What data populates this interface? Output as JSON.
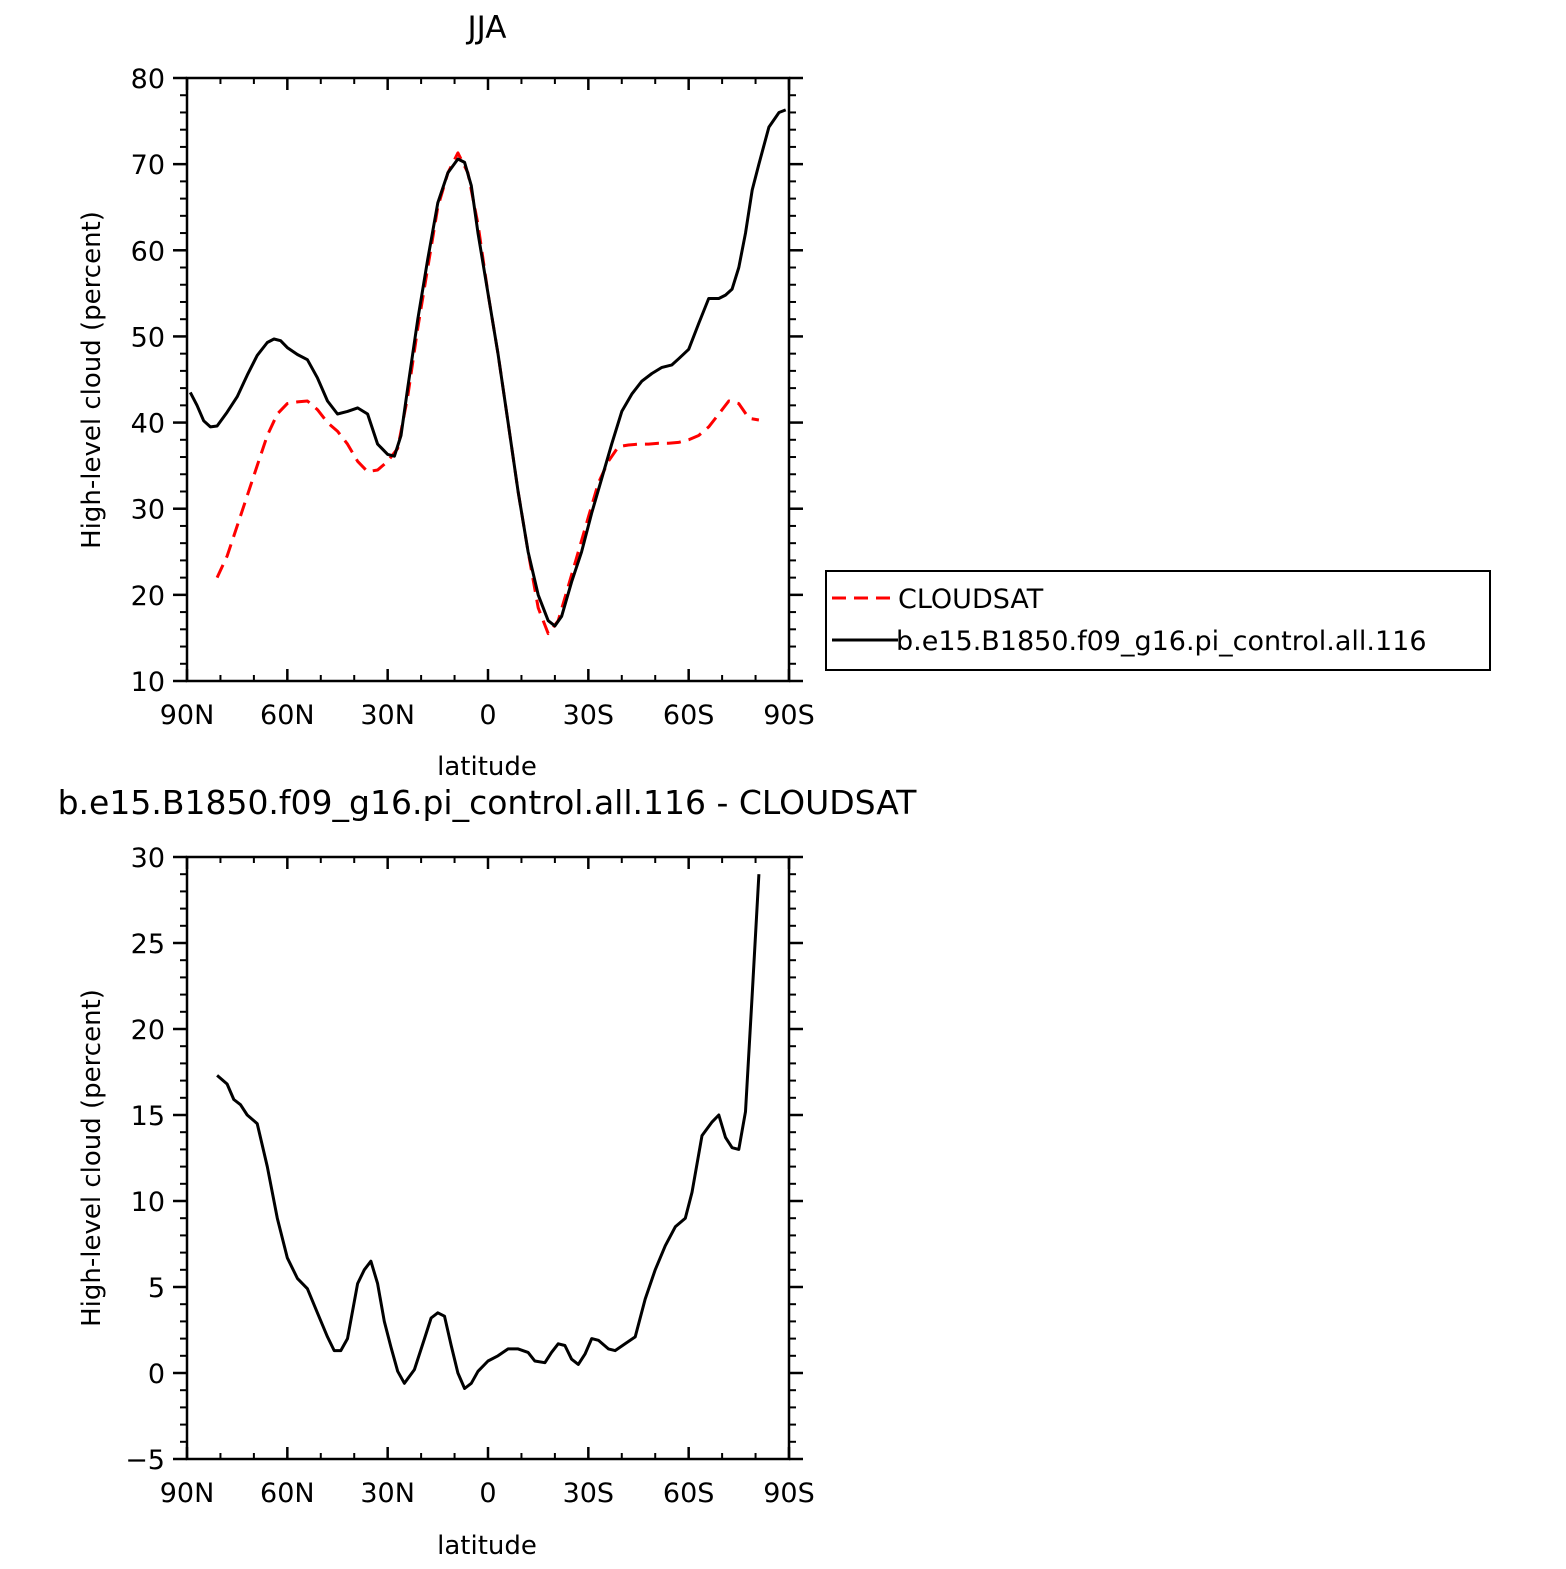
{
  "colors": {
    "cloudsat": "#ff0000",
    "model": "#000000",
    "axis": "#000000",
    "background": "#ffffff"
  },
  "chart_data": [
    {
      "type": "line",
      "title": "JJA",
      "xlabel": "latitude",
      "ylabel": "High-level cloud (percent)",
      "xlim": [
        90,
        -90
      ],
      "ylim": [
        10,
        80
      ],
      "x_ticks": [
        {
          "value": 90,
          "label": "90N"
        },
        {
          "value": 60,
          "label": "60N"
        },
        {
          "value": 30,
          "label": "30N"
        },
        {
          "value": 0,
          "label": "0"
        },
        {
          "value": -30,
          "label": "30S"
        },
        {
          "value": -60,
          "label": "60S"
        },
        {
          "value": -90,
          "label": "90S"
        }
      ],
      "y_ticks": [
        10,
        20,
        30,
        40,
        50,
        60,
        70,
        80
      ],
      "legend": {
        "placement": "right",
        "entries": [
          {
            "label": "CLOUDSAT",
            "style": "dashed",
            "color": "#ff0000"
          },
          {
            "label": "b.e15.B1850.f09_g16.pi_control.all.116",
            "style": "solid",
            "color": "#000000"
          }
        ]
      },
      "series": [
        {
          "name": "CLOUDSAT",
          "style": "dashed",
          "color": "#ff0000",
          "x": [
            81,
            78,
            75,
            72,
            69,
            66,
            63,
            60,
            57,
            54,
            51,
            48,
            45,
            42,
            39,
            36,
            33,
            30,
            27,
            24,
            21,
            18,
            15,
            12,
            9,
            6,
            3,
            0,
            -3,
            -6,
            -9,
            -12,
            -15,
            -18,
            -21,
            -24,
            -27,
            -30,
            -33,
            -36,
            -39,
            -42,
            -45,
            -48,
            -51,
            -54,
            -57,
            -60,
            -63,
            -66,
            -69,
            -72,
            -75,
            -78,
            -81
          ],
          "y": [
            22,
            24.5,
            28,
            31.5,
            35,
            38.5,
            41,
            42.2,
            42.4,
            42.5,
            41.5,
            40,
            39,
            37.5,
            35.5,
            34.3,
            34.5,
            35.5,
            37,
            43,
            51,
            58,
            65,
            69,
            71.3,
            69,
            63,
            55,
            48,
            40,
            32,
            25,
            18.5,
            15.5,
            17,
            21,
            25,
            29,
            33,
            35.5,
            37.2,
            37.4,
            37.5,
            37.5,
            37.6,
            37.6,
            37.7,
            38,
            38.5,
            39.5,
            41,
            42.5,
            42.2,
            40.5,
            40.3
          ]
        },
        {
          "name": "b.e15.B1850.f09_g16.pi_control.all.116",
          "style": "solid",
          "color": "#000000",
          "x": [
            89,
            87,
            85,
            83,
            81,
            78,
            75,
            72,
            69,
            66,
            64,
            62,
            60,
            57,
            54,
            51,
            48,
            45,
            42,
            39,
            36,
            33,
            30,
            28,
            26,
            24,
            21,
            18,
            15,
            12,
            9,
            7,
            5,
            3,
            0,
            -3,
            -6,
            -9,
            -12,
            -15,
            -18,
            -20,
            -22,
            -25,
            -28,
            -31,
            -34,
            -37,
            -40,
            -43,
            -46,
            -49,
            -52,
            -55,
            -57,
            -60,
            -63,
            -66,
            -69,
            -71,
            -73,
            -75,
            -77,
            -79,
            -81,
            -84,
            -87,
            -89
          ],
          "y": [
            43.5,
            42,
            40.2,
            39.5,
            39.6,
            41.2,
            43,
            45.5,
            47.8,
            49.3,
            49.7,
            49.5,
            48.7,
            47.9,
            47.3,
            45.2,
            42.5,
            41,
            41.3,
            41.7,
            41,
            37.5,
            36.3,
            36.1,
            38.5,
            44,
            52,
            59,
            65.5,
            69,
            70.6,
            70.2,
            67.5,
            62,
            55,
            48,
            40,
            32,
            25,
            20,
            17,
            16.4,
            17.5,
            21.5,
            25,
            29.5,
            33.5,
            37.5,
            41.3,
            43.3,
            44.8,
            45.7,
            46.4,
            46.7,
            47.4,
            48.5,
            51.5,
            54.4,
            54.4,
            54.8,
            55.5,
            58,
            62,
            67,
            70,
            74.3,
            76,
            76.3
          ]
        }
      ]
    },
    {
      "type": "line",
      "title": "b.e15.B1850.f09_g16.pi_control.all.116 - CLOUDSAT",
      "xlabel": "latitude",
      "ylabel": "High-level cloud (percent)",
      "xlim": [
        90,
        -90
      ],
      "ylim": [
        -5,
        30
      ],
      "x_ticks": [
        {
          "value": 90,
          "label": "90N"
        },
        {
          "value": 60,
          "label": "60N"
        },
        {
          "value": 30,
          "label": "30N"
        },
        {
          "value": 0,
          "label": "0"
        },
        {
          "value": -30,
          "label": "30S"
        },
        {
          "value": -60,
          "label": "60S"
        },
        {
          "value": -90,
          "label": "90S"
        }
      ],
      "y_ticks": [
        -5,
        0,
        5,
        10,
        15,
        20,
        25,
        30
      ],
      "series": [
        {
          "style": "solid",
          "color": "#000000",
          "x": [
            81,
            78,
            76,
            74,
            72,
            69,
            66,
            63,
            60,
            57,
            54,
            51,
            48,
            46,
            44,
            42,
            39,
            37,
            35,
            33,
            31,
            29,
            27,
            25,
            22,
            19,
            17,
            15,
            13,
            11,
            9,
            7,
            5,
            3,
            0,
            -3,
            -6,
            -9,
            -12,
            -14,
            -17,
            -19,
            -21,
            -23,
            -25,
            -27,
            -29,
            -31,
            -33,
            -36,
            -38,
            -41,
            -44,
            -47,
            -50,
            -53,
            -56,
            -59,
            -61,
            -64,
            -67,
            -69,
            -71,
            -73,
            -75,
            -77,
            -79,
            -81
          ],
          "y": [
            17.3,
            16.8,
            15.9,
            15.6,
            15,
            14.5,
            12,
            9,
            6.7,
            5.5,
            4.9,
            3.5,
            2.1,
            1.3,
            1.3,
            2,
            5.2,
            6,
            6.5,
            5.2,
            3,
            1.5,
            0.1,
            -0.6,
            0.2,
            2,
            3.2,
            3.5,
            3.3,
            1.6,
            0,
            -0.9,
            -0.6,
            0.1,
            0.7,
            1,
            1.4,
            1.4,
            1.2,
            0.7,
            0.6,
            1.2,
            1.7,
            1.6,
            0.8,
            0.5,
            1.1,
            2,
            1.9,
            1.4,
            1.3,
            1.7,
            2.1,
            4.3,
            6,
            7.4,
            8.5,
            9,
            10.5,
            13.8,
            14.6,
            15,
            13.7,
            13.1,
            13,
            15.2,
            22,
            29
          ]
        }
      ]
    }
  ]
}
